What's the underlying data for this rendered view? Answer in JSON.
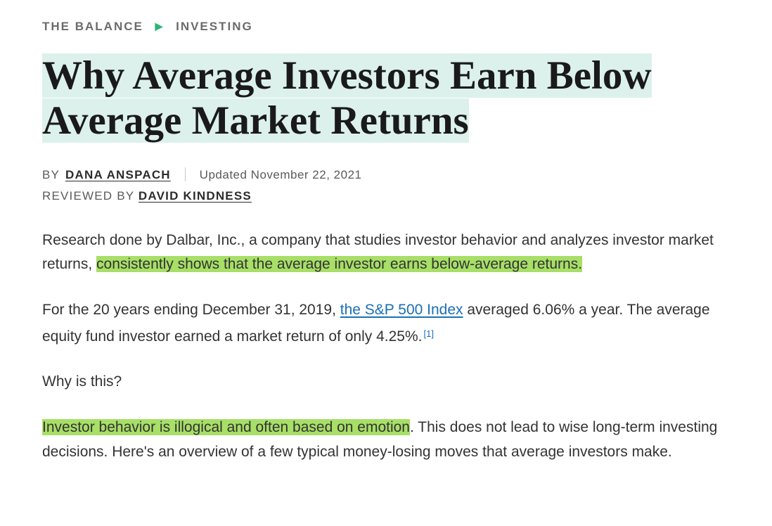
{
  "breadcrumb": {
    "site": "THE BALANCE",
    "category": "INVESTING"
  },
  "title": "Why Average Investors Earn Below Average Market Returns",
  "meta": {
    "by_label": "BY",
    "author": "DANA ANSPACH",
    "updated": "Updated November 22, 2021",
    "reviewed_label": "REVIEWED BY",
    "reviewer": "DAVID KINDNESS"
  },
  "paragraphs": {
    "p1_a": "Research done by Dalbar, Inc., a company that studies investor behavior and analyzes investor market returns, ",
    "p1_hl": "consistently shows that the average investor earns below-average returns.",
    "p2_a": "For the 20 years ending December 31, 2019, ",
    "p2_link": "the S&P 500 Index",
    "p2_b": " averaged 6.06% a year. The average equity fund investor earned a market return of only 4.25%.",
    "p2_ref": "[1]",
    "p3": "Why is this?",
    "p4_hl": "Investor behavior is illogical and often based on emotion",
    "p4_b": ". This does not lead to wise long-term investing decisions. Here's an overview of a few typical money-losing moves that average investors make."
  },
  "colors": {
    "title_highlight": "#dcf1ec",
    "body_highlight": "#a7df67",
    "link": "#1a6fb5",
    "arrow": "#2bb673"
  }
}
